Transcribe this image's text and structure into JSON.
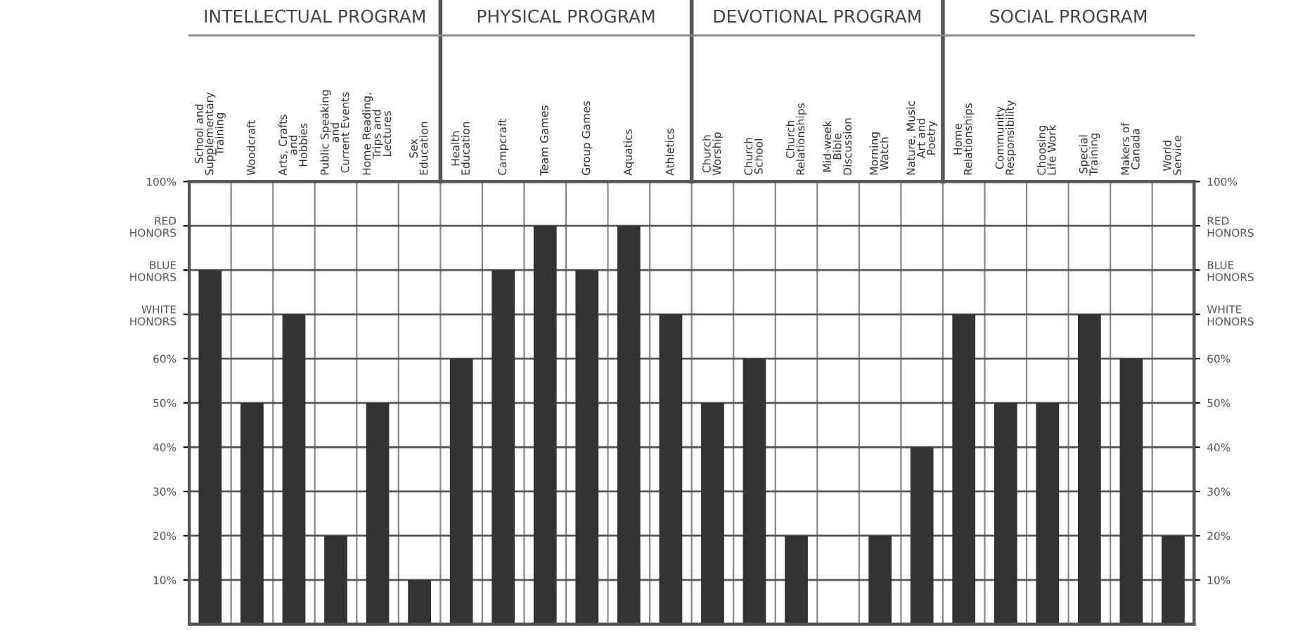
{
  "chart_data": {
    "type": "bar",
    "categories": [
      "School and\nSupplementary\nTraining",
      "Woodcraft",
      "Arts, Crafts\nand\nHobbies",
      "Public Speaking\nand\nCurrent Events",
      "Home Reading,\nTrips and\nLectures",
      "Sex\nEducation",
      "Health\nEducation",
      "Campcraft",
      "Team Games",
      "Group Games",
      "Aquatics",
      "Athletics",
      "Church\nWorship",
      "Church\nSchool",
      "Church\nRelationships",
      "Mid-week\nBible\nDiscussion",
      "Morning\nWatch",
      "Nature, Music\nArt and\nPoetry",
      "Home\nRelationships",
      "Community\nResponsibility",
      "Choosing\nLife Work",
      "Special\nTraining",
      "Makers of\nCanada",
      "World\nService"
    ],
    "values": [
      80,
      50,
      70,
      20,
      50,
      10,
      60,
      80,
      90,
      80,
      90,
      70,
      50,
      60,
      20,
      0,
      20,
      40,
      70,
      50,
      50,
      70,
      60,
      20
    ],
    "color": "#333333",
    "annotations": [
      "INTELLECTUAL PROGRAM",
      "PHYSICAL PROGRAM",
      "DEVOTIONAL PROGRAM",
      "SOCIAL PROGRAM"
    ],
    "ylim": [
      0,
      100
    ],
    "yticks": [
      {
        "value": 10,
        "label": "10%"
      },
      {
        "value": 20,
        "label": "20%"
      },
      {
        "value": 30,
        "label": "30%"
      },
      {
        "value": 40,
        "label": "40%"
      },
      {
        "value": 50,
        "label": "50%"
      },
      {
        "value": 60,
        "label": "60%"
      },
      {
        "value": 70,
        "label": "WHITE\nHONORS"
      },
      {
        "value": 80,
        "label": "BLUE\nHONORS"
      },
      {
        "value": 90,
        "label": "RED\nHONORS"
      },
      {
        "value": 100,
        "label": "100%"
      }
    ],
    "y2lim": [
      0,
      100
    ],
    "y2ticks": [
      {
        "value": 10,
        "label": "10%"
      },
      {
        "value": 20,
        "label": "20%"
      },
      {
        "value": 30,
        "label": "30%"
      },
      {
        "value": 40,
        "label": "40%"
      },
      {
        "value": 50,
        "label": "50%"
      },
      {
        "value": 60,
        "label": "60%"
      },
      {
        "value": 70,
        "label": "WHITE\nHONORS"
      },
      {
        "value": 80,
        "label": "BLUE\nHONORS"
      },
      {
        "value": 90,
        "label": "RED\nHONORS"
      },
      {
        "value": 100,
        "label": "100%"
      }
    ],
    "grid": true
  }
}
